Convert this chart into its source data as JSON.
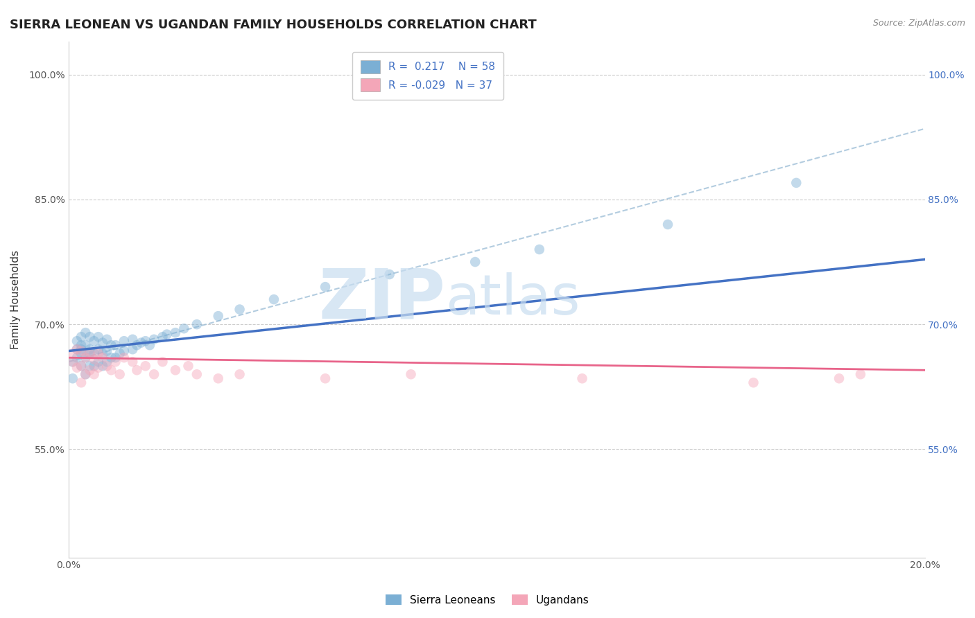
{
  "title": "SIERRA LEONEAN VS UGANDAN FAMILY HOUSEHOLDS CORRELATION CHART",
  "source": "Source: ZipAtlas.com",
  "xlabel": "",
  "ylabel": "Family Households",
  "xlim": [
    0.0,
    0.2
  ],
  "ylim": [
    0.42,
    1.04
  ],
  "ytick_labels": [
    "55.0%",
    "70.0%",
    "85.0%",
    "100.0%"
  ],
  "ytick_values": [
    0.55,
    0.7,
    0.85,
    1.0
  ],
  "xtick_labels": [
    "0.0%",
    "20.0%"
  ],
  "xtick_values": [
    0.0,
    0.2
  ],
  "right_ytick_labels": [
    "100.0%",
    "85.0%",
    "70.0%",
    "55.0%"
  ],
  "right_ytick_values": [
    1.0,
    0.85,
    0.7,
    0.55
  ],
  "color_sl": "#7bafd4",
  "color_ug": "#f4a6b8",
  "color_sl_line": "#4472c4",
  "color_ug_line": "#e8648a",
  "color_dashed": "#a0c0d8",
  "watermark_zip": "ZIP",
  "watermark_atlas": "atlas",
  "sl_x": [
    0.001,
    0.001,
    0.002,
    0.002,
    0.002,
    0.003,
    0.003,
    0.003,
    0.003,
    0.003,
    0.004,
    0.004,
    0.004,
    0.004,
    0.005,
    0.005,
    0.005,
    0.005,
    0.006,
    0.006,
    0.006,
    0.007,
    0.007,
    0.007,
    0.008,
    0.008,
    0.008,
    0.009,
    0.009,
    0.009,
    0.01,
    0.01,
    0.011,
    0.011,
    0.012,
    0.013,
    0.013,
    0.015,
    0.015,
    0.016,
    0.017,
    0.018,
    0.019,
    0.02,
    0.022,
    0.023,
    0.025,
    0.027,
    0.03,
    0.035,
    0.04,
    0.048,
    0.06,
    0.075,
    0.095,
    0.11,
    0.14,
    0.17
  ],
  "sl_y": [
    0.635,
    0.655,
    0.66,
    0.67,
    0.68,
    0.65,
    0.665,
    0.67,
    0.675,
    0.685,
    0.64,
    0.66,
    0.675,
    0.69,
    0.65,
    0.665,
    0.67,
    0.685,
    0.65,
    0.665,
    0.68,
    0.655,
    0.67,
    0.685,
    0.65,
    0.665,
    0.678,
    0.655,
    0.668,
    0.682,
    0.66,
    0.675,
    0.66,
    0.675,
    0.665,
    0.668,
    0.68,
    0.67,
    0.682,
    0.675,
    0.678,
    0.68,
    0.675,
    0.682,
    0.685,
    0.688,
    0.69,
    0.695,
    0.7,
    0.71,
    0.718,
    0.73,
    0.745,
    0.76,
    0.775,
    0.79,
    0.82,
    0.87
  ],
  "ug_x": [
    0.001,
    0.001,
    0.002,
    0.002,
    0.003,
    0.003,
    0.003,
    0.004,
    0.004,
    0.005,
    0.005,
    0.006,
    0.006,
    0.007,
    0.007,
    0.008,
    0.009,
    0.01,
    0.011,
    0.012,
    0.013,
    0.015,
    0.016,
    0.018,
    0.02,
    0.022,
    0.025,
    0.028,
    0.03,
    0.035,
    0.04,
    0.06,
    0.08,
    0.12,
    0.16,
    0.18,
    0.185
  ],
  "ug_y": [
    0.655,
    0.665,
    0.648,
    0.67,
    0.63,
    0.65,
    0.668,
    0.64,
    0.66,
    0.645,
    0.665,
    0.64,
    0.658,
    0.648,
    0.665,
    0.66,
    0.65,
    0.645,
    0.655,
    0.64,
    0.66,
    0.655,
    0.645,
    0.65,
    0.64,
    0.655,
    0.645,
    0.65,
    0.64,
    0.635,
    0.64,
    0.635,
    0.64,
    0.635,
    0.63,
    0.635,
    0.64
  ],
  "title_fontsize": 13,
  "axis_label_fontsize": 11,
  "tick_fontsize": 10,
  "legend_fontsize": 11,
  "watermark_fontsize": 72,
  "background_color": "#ffffff",
  "grid_color": "#cccccc",
  "grid_style": "--",
  "scatter_size": 110,
  "scatter_alpha": 0.45
}
